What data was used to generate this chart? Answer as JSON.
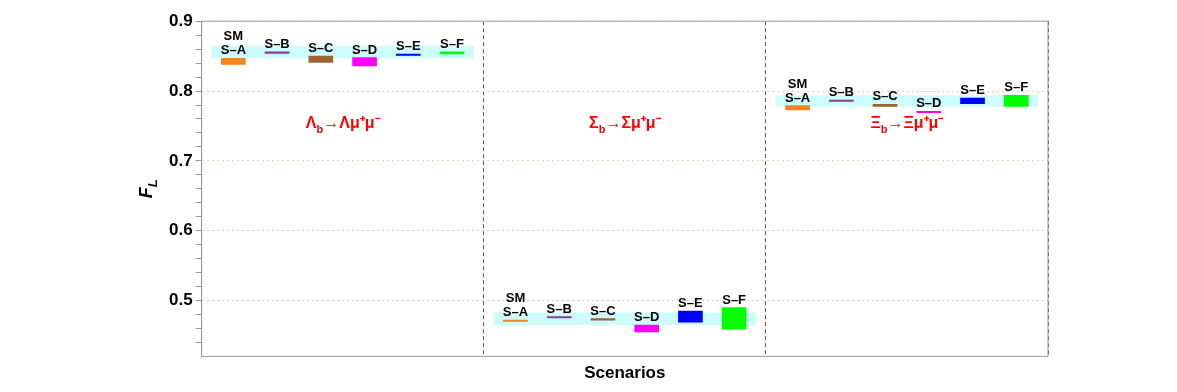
{
  "chart_data": {
    "type": "bar",
    "xlabel": "Scenarios",
    "ylabel": "F$_{L}$",
    "categories": [
      null,
      null,
      null
    ],
    "ylim": [
      0.42,
      0.9
    ],
    "yticks": [
      {
        "value": 0.44,
        "label": null
      },
      {
        "value": 0.46,
        "label": null
      },
      {
        "value": 0.48,
        "label": null
      },
      0.5,
      {
        "value": 0.52,
        "label": null
      },
      {
        "value": 0.54,
        "label": null
      },
      {
        "value": 0.56,
        "label": null
      },
      {
        "value": 0.58,
        "label": null
      },
      0.6,
      {
        "value": 0.62,
        "label": null
      },
      {
        "value": 0.64,
        "label": null
      },
      {
        "value": 0.66,
        "label": null
      },
      {
        "value": 0.68,
        "label": null
      },
      0.7,
      {
        "value": 0.72,
        "label": null
      },
      {
        "value": 0.74,
        "label": null
      },
      {
        "value": 0.76,
        "label": null
      },
      {
        "value": 0.78,
        "label": null
      },
      0.8,
      {
        "value": 0.82,
        "label": null
      },
      {
        "value": 0.84,
        "label": null
      },
      {
        "value": 0.86,
        "label": null
      },
      {
        "value": 0.88,
        "label": null
      },
      0.9
    ],
    "grid": true,
    "legend": false,
    "series": [
      {
        "name": "SM",
        "color": "#ccfcfc",
        "base": [
          0.847,
          0.465,
          0.778
        ],
        "values": [
          0.018,
          0.018,
          0.016
        ]
      },
      {
        "name": "S–A",
        "color": "#f5821f",
        "base": [
          0.838,
          0.47,
          0.773
        ],
        "values": [
          0.009,
          0.002,
          0.006
        ]
      },
      {
        "name": "S–B",
        "color": "#8b3a96",
        "base": [
          0.854,
          0.475,
          0.785
        ],
        "values": [
          0.002,
          0.002,
          0.002
        ]
      },
      {
        "name": "S–C",
        "color": "#9c6430",
        "base": [
          0.841,
          0.472,
          0.778
        ],
        "values": [
          0.009,
          0.002,
          0.003
        ]
      },
      {
        "name": "S–D",
        "color": "#ff00ff",
        "base": [
          0.836,
          0.455,
          0.769
        ],
        "values": [
          0.012,
          0.01,
          0.002
        ]
      },
      {
        "name": "S–E",
        "color": "#0000ff",
        "base": [
          0.851,
          0.469,
          0.782
        ],
        "values": [
          0.002,
          0.016,
          0.008
        ]
      },
      {
        "name": "S–F",
        "color": "#00ff00",
        "base": [
          0.853,
          0.459,
          0.778
        ],
        "values": [
          0.003,
          0.031,
          0.016
        ]
      }
    ],
    "annotations": [
      "Λ$_{b}$→Λμ⁺μ⁻",
      "Σ$_{b}$→Σμ⁺μ⁻",
      "Ξ$_{b}$→Ξμ⁺μ⁻"
    ]
  }
}
